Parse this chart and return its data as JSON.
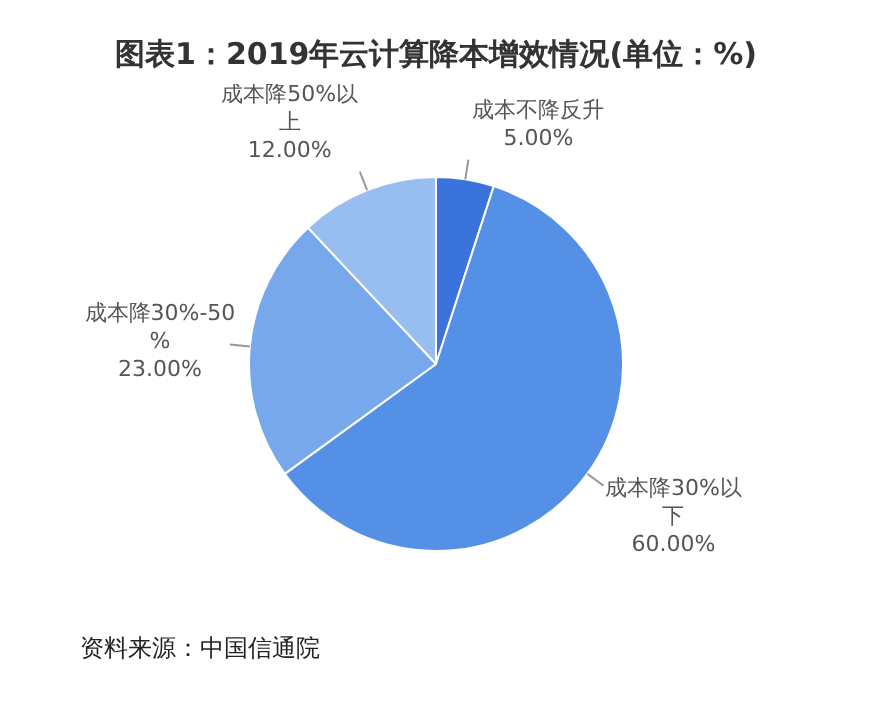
{
  "chart_data": {
    "type": "pie",
    "title": "图表1：2019年云计算降本增效情况(单位：%)",
    "categories": [
      "成本不降反升",
      "成本降30%以下",
      "成本降30%-50%",
      "成本降50%以上"
    ],
    "values": [
      5,
      60,
      23,
      12
    ],
    "value_labels": [
      "5.00%",
      "60.00%",
      "23.00%",
      "12.00%"
    ],
    "colors": [
      "#3b73dc",
      "#5490e6",
      "#78a8ec",
      "#97bdf1"
    ],
    "legend": false,
    "annotations": [
      "资料来源：中国信通院"
    ]
  }
}
